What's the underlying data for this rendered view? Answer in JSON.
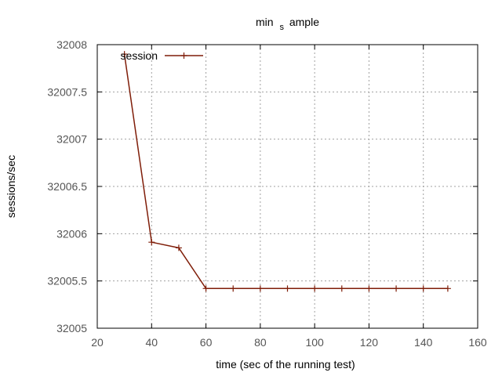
{
  "chart_data": {
    "type": "line",
    "title": {
      "pre": "min",
      "sub": "s",
      "post": "ample"
    },
    "xlabel": "time (sec of the running test)",
    "ylabel": "sessions/sec",
    "xlim": [
      20,
      160
    ],
    "ylim": [
      32005,
      32008
    ],
    "xticks": [
      20,
      40,
      60,
      80,
      100,
      120,
      140,
      160
    ],
    "yticks": [
      32005,
      32005.5,
      32006,
      32006.5,
      32007,
      32007.5,
      32008
    ],
    "grid": true,
    "legend_position": "top-left",
    "series": [
      {
        "name": "session",
        "color": "#7f1d08",
        "marker": "plus",
        "x": [
          30,
          40,
          50,
          60,
          70,
          80,
          90,
          100,
          110,
          120,
          130,
          140,
          149
        ],
        "y": [
          32007.9,
          32005.91,
          32005.85,
          32005.42,
          32005.42,
          32005.42,
          32005.42,
          32005.42,
          32005.42,
          32005.42,
          32005.42,
          32005.42,
          32005.42
        ]
      }
    ]
  }
}
